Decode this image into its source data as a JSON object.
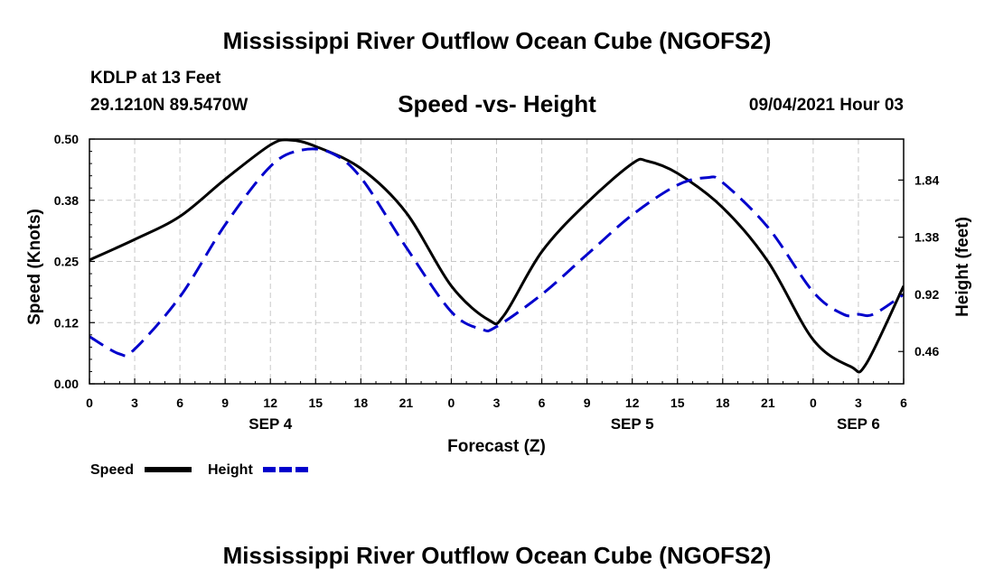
{
  "header": {
    "title": "Mississippi River Outflow Ocean Cube (NGOFS2)",
    "station": "KDLP at 13 Feet",
    "coords": "29.1210N  89.5470W",
    "subtitle": "Speed -vs- Height",
    "datetime": "09/04/2021 Hour 03"
  },
  "footer": {
    "title": "Mississippi River Outflow Ocean Cube (NGOFS2)"
  },
  "chart_data": {
    "type": "line",
    "title": "Speed -vs- Height",
    "xlabel": "Forecast (Z)",
    "ylabel": "Speed (Knots)",
    "y2label": "Height (feet)",
    "xlim": [
      0,
      54
    ],
    "ylim": [
      0,
      0.5
    ],
    "y2lim": [
      0.2,
      2.17
    ],
    "grid": true,
    "x_tick_hours": [
      0,
      3,
      6,
      9,
      12,
      15,
      18,
      21,
      24,
      27,
      30,
      33,
      36,
      39,
      42,
      45,
      48,
      51,
      54
    ],
    "x_tick_labels": [
      "0",
      "3",
      "6",
      "9",
      "12",
      "15",
      "18",
      "21",
      "0",
      "3",
      "6",
      "9",
      "12",
      "15",
      "18",
      "21",
      "0",
      "3",
      "6"
    ],
    "date_labels": [
      {
        "label": "SEP 4",
        "hour": 12
      },
      {
        "label": "SEP 5",
        "hour": 36
      },
      {
        "label": "SEP 6",
        "hour": 51
      }
    ],
    "y_ticks": [
      0.0,
      0.125,
      0.25,
      0.375,
      0.5
    ],
    "y_tick_labels": [
      "0.00",
      "0.12",
      "0.25",
      "0.38",
      "0.50"
    ],
    "y2_ticks": [
      0.46,
      0.92,
      1.38,
      1.84
    ],
    "y2_tick_labels": [
      "0.46",
      "0.92",
      "1.38",
      "1.84"
    ],
    "legend": [
      {
        "name": "Speed",
        "color": "#000000",
        "dash": "solid"
      },
      {
        "name": "Height",
        "color": "#0000cc",
        "dash": "dashed"
      }
    ],
    "series": [
      {
        "name": "Speed",
        "axis": "left",
        "color": "#000000",
        "x": [
          0,
          3,
          6,
          9,
          12,
          13.3,
          15,
          18,
          21,
          24,
          26.5,
          27.5,
          30,
          33,
          36,
          37,
          39,
          42,
          45,
          48,
          50.5,
          51.5,
          54
        ],
        "y": [
          0.253,
          0.295,
          0.342,
          0.418,
          0.488,
          0.498,
          0.485,
          0.44,
          0.35,
          0.2,
          0.13,
          0.14,
          0.27,
          0.37,
          0.45,
          0.455,
          0.43,
          0.36,
          0.25,
          0.09,
          0.035,
          0.04,
          0.2
        ]
      },
      {
        "name": "Height",
        "axis": "right",
        "color": "#0000cc",
        "x": [
          0,
          2,
          3,
          6,
          9,
          12,
          14,
          16,
          18,
          21,
          24,
          26,
          27,
          30,
          33,
          36,
          39,
          41,
          42,
          45,
          48,
          50,
          51,
          52,
          54
        ],
        "y": [
          0.58,
          0.44,
          0.48,
          0.9,
          1.48,
          1.95,
          2.08,
          2.06,
          1.86,
          1.3,
          0.78,
          0.64,
          0.66,
          0.92,
          1.24,
          1.56,
          1.8,
          1.86,
          1.82,
          1.46,
          0.94,
          0.76,
          0.76,
          0.76,
          0.92
        ]
      }
    ]
  }
}
